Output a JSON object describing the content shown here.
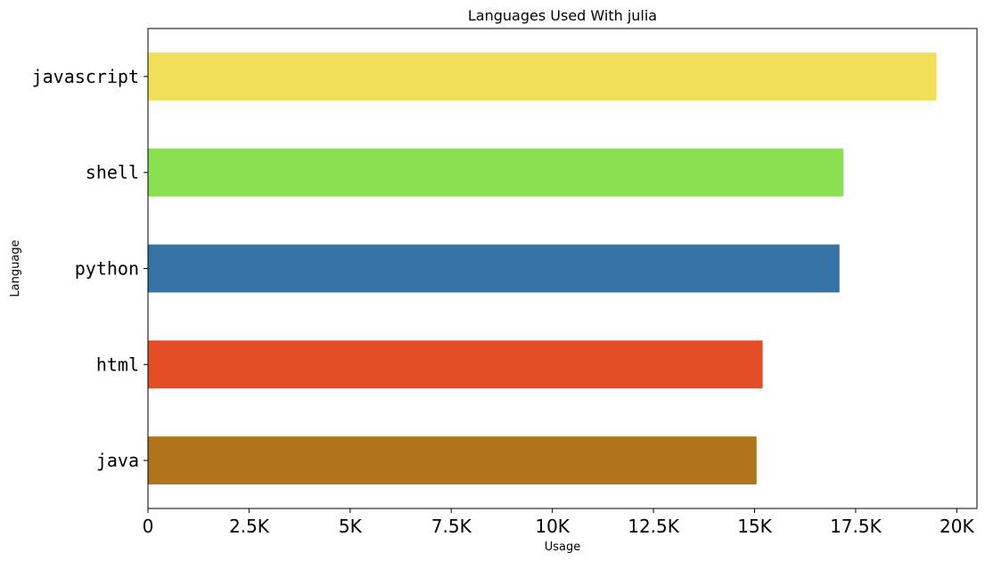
{
  "chart_data": {
    "type": "bar",
    "orientation": "horizontal",
    "title": "Languages Used With julia",
    "xlabel": "Usage",
    "ylabel": "Language",
    "categories": [
      "java",
      "html",
      "python",
      "shell",
      "javascript"
    ],
    "values": [
      15050,
      15200,
      17100,
      17200,
      19500
    ],
    "colors": [
      "#b0751c",
      "#e34e26",
      "#3572a5",
      "#89e051",
      "#f0e05a"
    ],
    "xlim": [
      0,
      20500
    ],
    "xticks": [
      0,
      2500,
      5000,
      7500,
      10000,
      12500,
      15000,
      17500,
      20000
    ],
    "xtick_labels": [
      "0",
      "2.5K",
      "5K",
      "7.5K",
      "10K",
      "12.5K",
      "15K",
      "17.5K",
      "20K"
    ],
    "grid": false,
    "legend": "none"
  }
}
